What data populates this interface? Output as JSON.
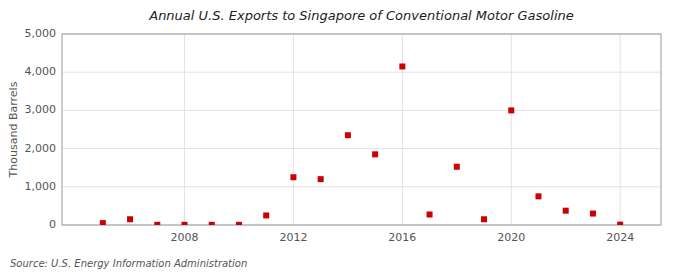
{
  "chart_data": {
    "type": "scatter",
    "title": "Annual U.S. Exports to Singapore of Conventional Motor Gasoline",
    "ylabel": "Thousand Barrels",
    "source": "Source: U.S. Energy Information Administration",
    "x": [
      2005,
      2006,
      2007,
      2008,
      2009,
      2010,
      2011,
      2012,
      2013,
      2014,
      2015,
      2016,
      2017,
      2018,
      2019,
      2020,
      2021,
      2022,
      2023,
      2024
    ],
    "values": [
      50,
      150,
      5,
      5,
      5,
      5,
      250,
      1250,
      1200,
      2350,
      1850,
      4150,
      275,
      1525,
      150,
      3000,
      750,
      375,
      300,
      10
    ],
    "color": "#cc0000",
    "marker": "square",
    "xlim": [
      2003.5,
      2025.5
    ],
    "ylim": [
      0,
      5000
    ],
    "xticks": [
      2008,
      2012,
      2016,
      2020,
      2024
    ],
    "yticks": [
      0,
      {
        "value": 1000,
        "label": "1,000"
      },
      {
        "value": 2000,
        "label": "2,000"
      },
      {
        "value": 3000,
        "label": "3,000"
      },
      {
        "value": 4000,
        "label": "4,000"
      },
      {
        "value": 5000,
        "label": "5,000"
      }
    ],
    "grid": true
  }
}
